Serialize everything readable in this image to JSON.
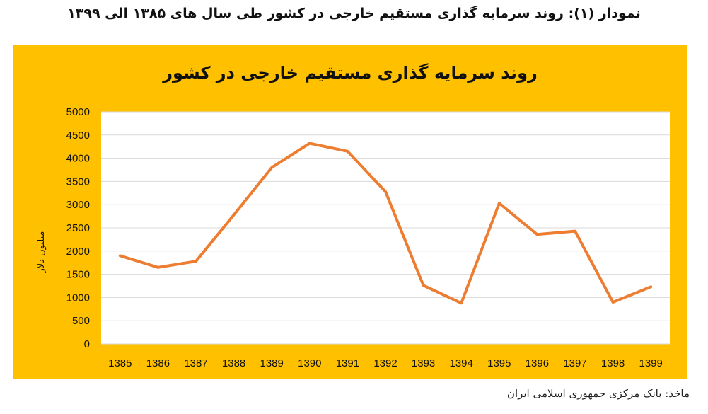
{
  "caption": "نمودار (۱): روند سرمایه گذاری مستقیم خارجی در کشور طی سال های ۱۳۸۵ الی ۱۳۹۹",
  "source": "ماخذ: بانک مرکزی جمهوری اسلامی ایران",
  "colors": {
    "panel_background": "#FFC000",
    "plot_background": "#FFFFFF",
    "line": "#ED7D31",
    "gridline": "#D9D9D9"
  },
  "chart_data": {
    "type": "line",
    "title": "روند سرمایه گذاری مستقیم خارجی در کشور",
    "xlabel": "",
    "ylabel": "میلیون دلار",
    "categories": [
      "1385",
      "1386",
      "1387",
      "1388",
      "1389",
      "1390",
      "1391",
      "1392",
      "1393",
      "1394",
      "1395",
      "1396",
      "1397",
      "1398",
      "1399"
    ],
    "values": [
      1900,
      1650,
      1780,
      2780,
      3800,
      4320,
      4150,
      3280,
      1260,
      880,
      3030,
      2360,
      2430,
      900,
      1230
    ],
    "ylim": [
      0,
      5000
    ],
    "yticks": [
      "0",
      "500",
      "1000",
      "1500",
      "2000",
      "2500",
      "3000",
      "3500",
      "4000",
      "4500",
      "5000"
    ],
    "grid": true,
    "legend": "none"
  }
}
